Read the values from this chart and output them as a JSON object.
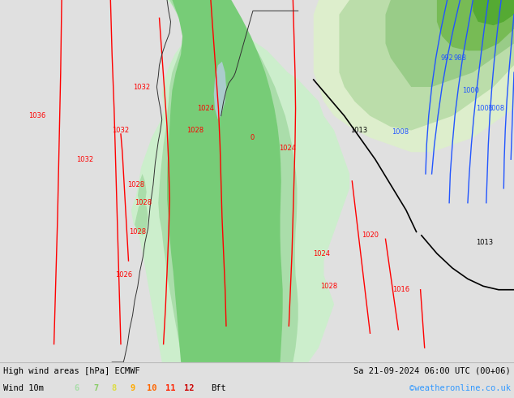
{
  "title_left": "High wind areas [hPa] ECMWF",
  "title_right": "Sa 21-09-2024 06:00 UTC (00+06)",
  "subtitle_label": "Wind 10m",
  "bft_label": "Bft",
  "bft_values": [
    "6",
    "7",
    "8",
    "9",
    "10",
    "11",
    "12"
  ],
  "bft_colors": [
    "#aaddaa",
    "#88cc66",
    "#dddd44",
    "#ffaa00",
    "#ff6600",
    "#ff2200",
    "#cc0000"
  ],
  "credit": "©weatheronline.co.uk",
  "credit_color": "#3399ff",
  "bg_color": "#e0e0e0",
  "map_bg": "#e8e8e8",
  "figsize": [
    6.34,
    4.9
  ],
  "dpi": 100,
  "bottom_bar_color": "#ffffff",
  "text_color": "#000000",
  "sea_color": "#e0e0e0",
  "land_no_wind": "#f0f0f0",
  "wind_light": "#cceecc",
  "wind_med": "#aaddaa",
  "wind_strong": "#77cc77",
  "wind_vstrong": "#44bb44",
  "wind_dark": "#22aa22",
  "isobar_red": "#ff0000",
  "isobar_blue": "#2255ff",
  "isobar_black": "#000000",
  "border_color": "#333333"
}
